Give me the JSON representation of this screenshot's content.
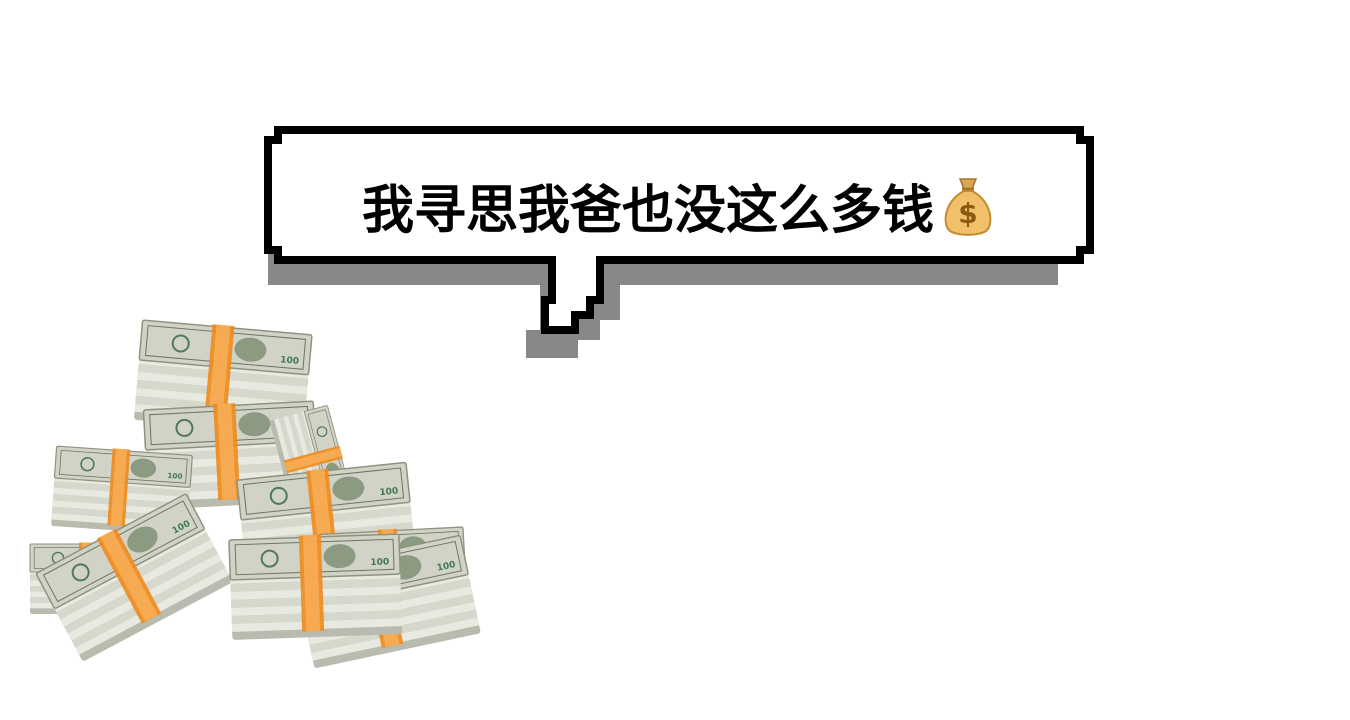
{
  "bubble": {
    "caption": "我寻思我爸也没这么多钱",
    "emoji": "money-bag-icon",
    "outline_color": "#000000",
    "shadow_color": "#888888",
    "fill_color": "#ffffff"
  },
  "money_pile": {
    "icon": "cash-stack-icon",
    "bill_color": "#c9cbbd",
    "band_color": "#f08a1c",
    "ink_color": "#5f6b57"
  }
}
